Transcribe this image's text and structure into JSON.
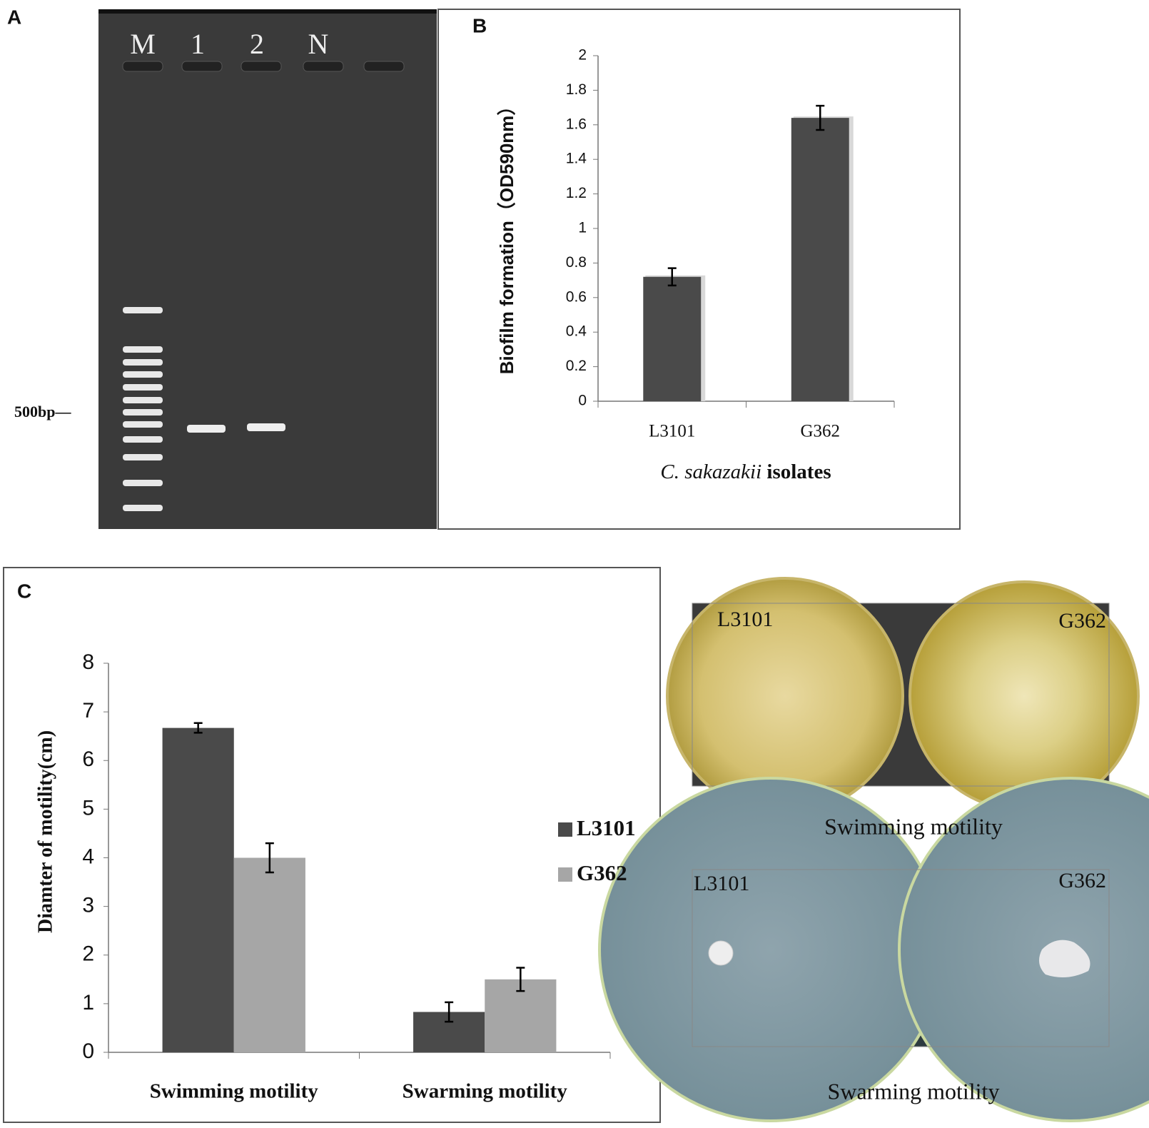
{
  "panel_labels": [
    "A",
    "B",
    "C"
  ],
  "gel": {
    "lanes": [
      "M",
      "1",
      "2",
      "N"
    ],
    "marker": "500bp—"
  },
  "chart_data": [
    {
      "type": "bar",
      "ylabel": "Biofilm formation（OD590nm）",
      "xlabel_species": "C. sakazakii",
      "xlabel": "isolates",
      "categories": [
        "L3101",
        "G362"
      ],
      "values": [
        0.72,
        1.64
      ],
      "errors": [
        0.05,
        0.07
      ],
      "color": "#4a4a4a",
      "ylim": [
        0,
        2
      ],
      "yticks": [
        0,
        0.2,
        0.4,
        0.6,
        0.8,
        1,
        1.2,
        1.4,
        1.6,
        1.8,
        2
      ]
    },
    {
      "type": "bar",
      "ylabel": "Diamter of motility(cm)",
      "categories": [
        "Swimming motility",
        "Swarming motility"
      ],
      "series": [
        {
          "name": "L3101",
          "color": "#4a4a4a",
          "values": [
            6.67,
            0.83
          ],
          "errors": [
            0.1,
            0.2
          ]
        },
        {
          "name": "G362",
          "color": "#a6a6a6",
          "values": [
            4.0,
            1.5
          ],
          "errors": [
            0.3,
            0.24
          ]
        }
      ],
      "ylim": [
        0,
        8
      ],
      "yticks": [
        0,
        1,
        2,
        3,
        4,
        5,
        6,
        7,
        8
      ]
    }
  ],
  "photos": [
    {
      "caption": "Swimming motility",
      "labels": [
        "L3101",
        "G362"
      ]
    },
    {
      "caption": "Swarming motility",
      "labels": [
        "L3101",
        "G362"
      ]
    }
  ]
}
